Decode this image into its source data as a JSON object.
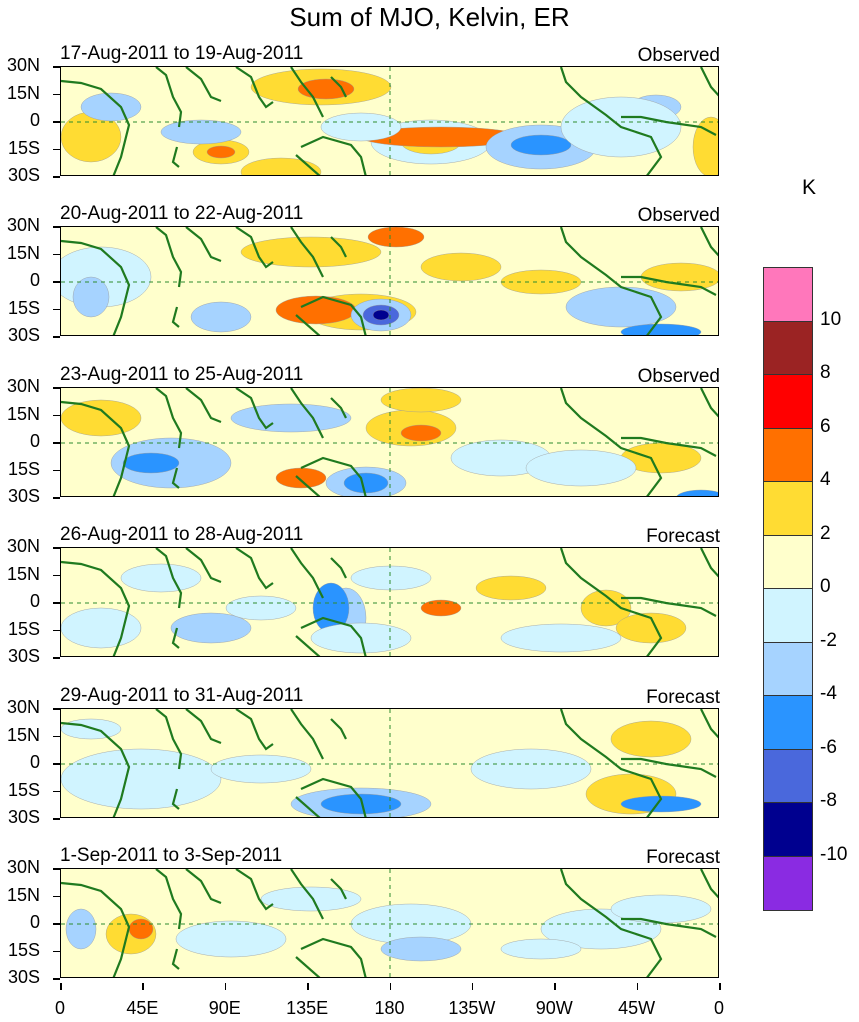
{
  "title": "Sum of MJO, Kelvin, ER",
  "unit": "K",
  "panels": [
    {
      "date_range": "17-Aug-2011 to 19-Aug-2011",
      "kind": "Observed"
    },
    {
      "date_range": "20-Aug-2011 to 22-Aug-2011",
      "kind": "Observed"
    },
    {
      "date_range": "23-Aug-2011 to 25-Aug-2011",
      "kind": "Observed"
    },
    {
      "date_range": "26-Aug-2011 to 28-Aug-2011",
      "kind": "Forecast"
    },
    {
      "date_range": "29-Aug-2011 to 31-Aug-2011",
      "kind": "Forecast"
    },
    {
      "date_range": "1-Sep-2011 to 3-Sep-2011",
      "kind": "Forecast"
    }
  ],
  "lat_labels": [
    "30N",
    "15N",
    "0",
    "15S",
    "30S"
  ],
  "lon_labels": [
    "0",
    "45E",
    "90E",
    "135E",
    "180",
    "135W",
    "90W",
    "45W",
    "0"
  ],
  "colorbar": {
    "labels": [
      "10",
      "8",
      "6",
      "4",
      "2",
      "0",
      "-2",
      "-4",
      "-6",
      "-8",
      "-10"
    ],
    "colors": [
      "#ff77bb",
      "#9b2323",
      "#ff0000",
      "#ff7000",
      "#ffdc33",
      "#ffffcc",
      "#d0f4ff",
      "#a6d3ff",
      "#2a94ff",
      "#4a68dc",
      "#00008f",
      "#8a2be2"
    ]
  },
  "colors": {
    "coast": "#1f7a1f",
    "equator": "#2e8b2e"
  }
}
